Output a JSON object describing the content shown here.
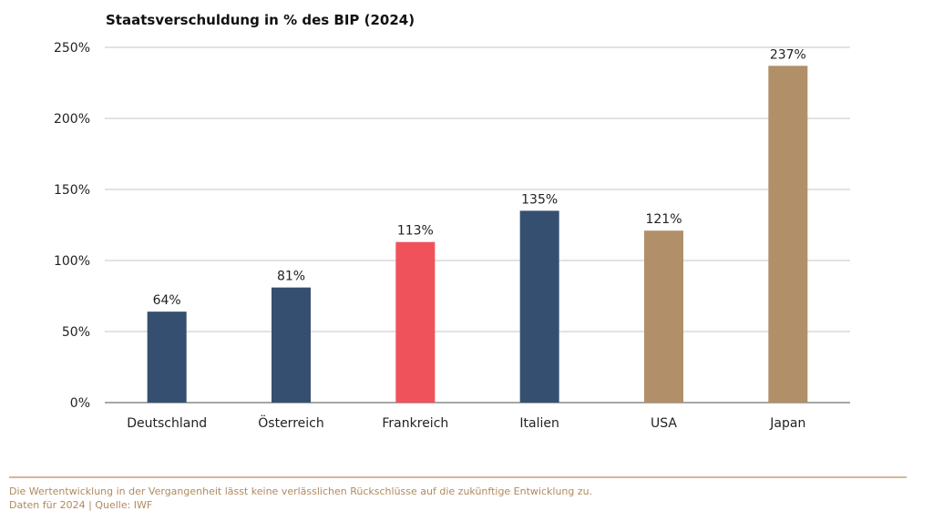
{
  "chart_data": {
    "type": "bar",
    "title": "Staatsverschuldung in % des BIP (2024)",
    "categories": [
      "Deutschland",
      "Österreich",
      "Frankreich",
      "Italien",
      "USA",
      "Japan"
    ],
    "values": [
      64,
      81,
      113,
      135,
      121,
      237
    ],
    "data_labels": [
      "64%",
      "81%",
      "113%",
      "135%",
      "121%",
      "237%"
    ],
    "colors": [
      "#354f70",
      "#354f70",
      "#ef525b",
      "#354f70",
      "#b08f69",
      "#b08f69"
    ],
    "ylim": [
      0,
      250
    ],
    "yticks": [
      0,
      50,
      100,
      150,
      200,
      250
    ],
    "ytick_labels": [
      "0%",
      "50%",
      "100%",
      "150%",
      "200%",
      "250%"
    ],
    "xlabel": "",
    "ylabel": "",
    "grid": true
  },
  "footer": {
    "disclaimer": "Die Wertentwicklung in der Vergangenheit lässt keine verlässlichen Rückschlüsse auf die zukünftige Entwicklung zu.",
    "source": "Daten für 2024 | Quelle: IWF"
  }
}
